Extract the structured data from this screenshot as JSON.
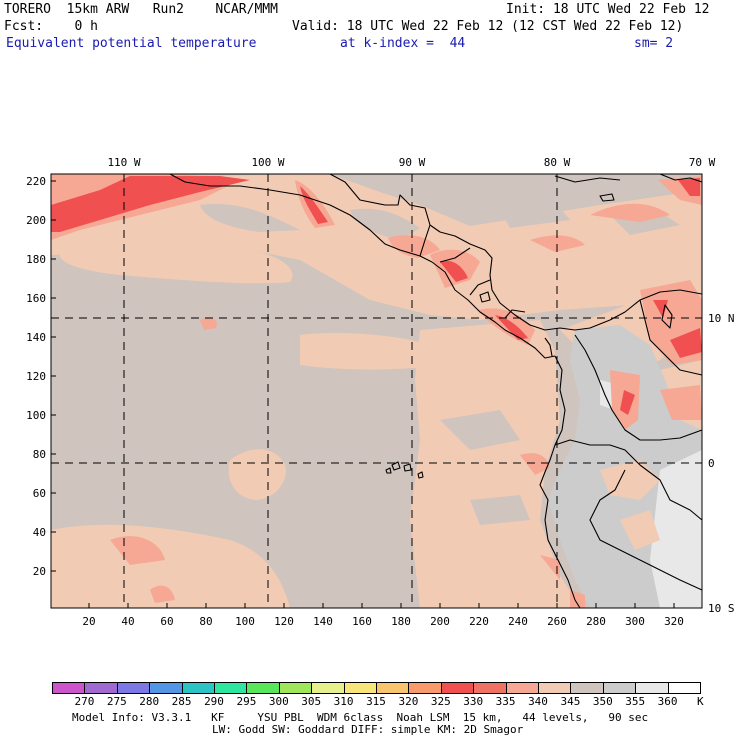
{
  "header": {
    "model": "TORERO  15km ARW   Run2    NCAR/MMM",
    "init": "Init: 18 UTC Wed 22 Feb 12",
    "fcst": "Fcst:    0 h",
    "valid": "Valid: 18 UTC Wed 22 Feb 12 (12 CST Wed 22 Feb 12)",
    "field": "Equivalent potential temperature",
    "level": "at k-index =  44",
    "smooth": "sm= 2"
  },
  "map": {
    "lon_labels": [
      "110 W",
      "100 W",
      "90 W",
      "80 W",
      "70 W"
    ],
    "lat_labels": [
      "10 N",
      "0",
      "10 S"
    ],
    "y_ticks": [
      "220",
      "200",
      "180",
      "160",
      "140",
      "120",
      "100",
      "80",
      "60",
      "40",
      "20"
    ],
    "x_ticks": [
      "20",
      "40",
      "60",
      "80",
      "100",
      "120",
      "140",
      "160",
      "180",
      "200",
      "220",
      "240",
      "260",
      "280",
      "300",
      "320"
    ]
  },
  "colorbar": {
    "labels": [
      "270",
      "275",
      "280",
      "285",
      "290",
      "295",
      "300",
      "305",
      "310",
      "315",
      "320",
      "325",
      "330",
      "335",
      "340",
      "345",
      "350",
      "355",
      "360"
    ],
    "unit": "K",
    "colors": [
      "#cc55cc",
      "#a06ad2",
      "#7c78e6",
      "#5496e6",
      "#2cc4c4",
      "#2ee6a0",
      "#5ae65a",
      "#a0e65a",
      "#e6f08c",
      "#f8e67a",
      "#f8c46e",
      "#f89a6c",
      "#f05050",
      "#f07264",
      "#f6a894",
      "#f2cbb5",
      "#cfc4be",
      "#cccccc",
      "#e8e8e8",
      "#ffffff"
    ]
  },
  "footer": {
    "line1": "Model Info: V3.3.1   KF     YSU PBL  WDM 6class  Noah LSM  15 km,   44 levels,   90 sec",
    "line2": "LW: Godd SW: Goddard DIFF: simple KM: 2D Smagor"
  }
}
